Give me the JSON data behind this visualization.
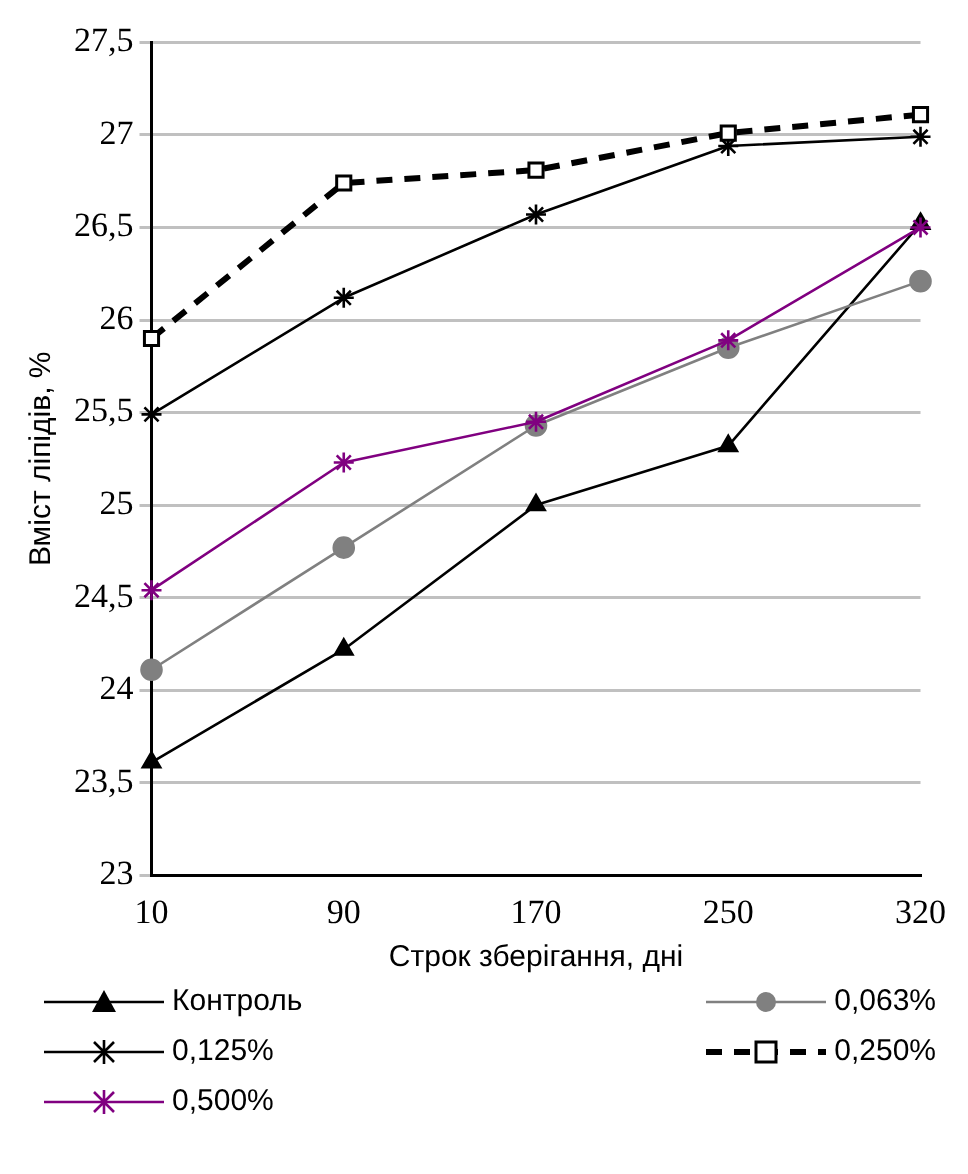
{
  "chart_data": {
    "type": "line",
    "xlabel": "Строк зберігання, дні",
    "ylabel": "Вміст ліпідів, %",
    "categories": [
      "10",
      "90",
      "170",
      "250",
      "320"
    ],
    "ylim": [
      23,
      27.5
    ],
    "yticks": [
      23,
      {
        "value": 23.5,
        "label": "23,5"
      },
      24,
      {
        "value": 24.5,
        "label": "24,5"
      },
      25,
      {
        "value": 25.5,
        "label": "25,5"
      },
      26,
      {
        "value": 26.5,
        "label": "26,5"
      },
      27,
      {
        "value": 27.5,
        "label": "27,5"
      }
    ],
    "grid": "y",
    "legend": "bottom",
    "series": [
      {
        "name": "Контроль",
        "color": "#000000",
        "marker": "triangle",
        "line_style": "solid",
        "values": [
          23.61,
          24.22,
          25.0,
          25.32,
          26.52
        ]
      },
      {
        "name": "0,063%",
        "color": "#808080",
        "marker": "circle",
        "line_style": "solid",
        "values": [
          24.11,
          24.77,
          25.43,
          25.85,
          26.21
        ]
      },
      {
        "name": "0,125%",
        "color": "#000000",
        "marker": "cross",
        "line_style": "solid",
        "values": [
          25.49,
          26.12,
          26.57,
          26.94,
          26.99
        ]
      },
      {
        "name": "0,250%",
        "color": "#000000",
        "marker": "square",
        "line_style": "dashed",
        "values": [
          25.9,
          26.74,
          26.81,
          27.01,
          27.11
        ]
      },
      {
        "name": "0,500%",
        "color": "#800080",
        "marker": "cross",
        "line_style": "solid",
        "values": [
          24.54,
          25.23,
          25.45,
          25.89,
          26.5
        ]
      }
    ]
  }
}
